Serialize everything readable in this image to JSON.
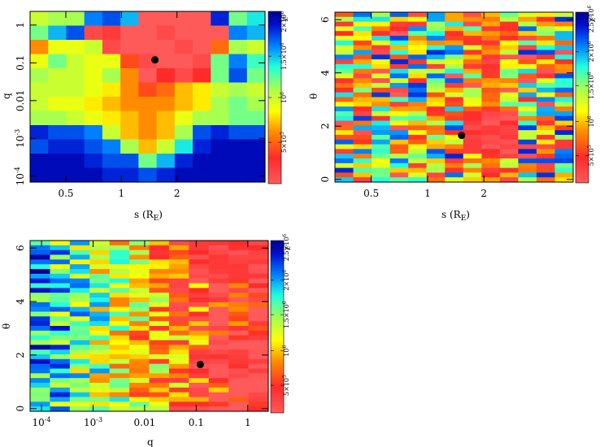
{
  "figure": {
    "description_free": true
  },
  "chart_data": [
    {
      "type": "heatmap",
      "panel": "top-left",
      "xlabel": "s (R_E)",
      "xlabel_main": "s (R",
      "xlabel_sub": "E",
      "xlabel_close": ")",
      "ylabel": "q",
      "x_scale": "log",
      "y_scale": "log",
      "xlim": [
        0.32,
        6.0
      ],
      "ylim": [
        7e-05,
        2.3
      ],
      "x_ticks": [
        {
          "v": 0.5,
          "label": "0.5"
        },
        {
          "v": 1,
          "label": "1"
        },
        {
          "v": 2,
          "label": "2"
        }
      ],
      "y_ticks": [
        {
          "v": 0.0001,
          "label": "10^-4"
        },
        {
          "v": 0.001,
          "label": "10^-3"
        },
        {
          "v": 0.01,
          "label": "0.01"
        },
        {
          "v": 0.1,
          "label": "0.1"
        },
        {
          "v": 1,
          "label": "1"
        }
      ],
      "best_fit_marker": {
        "x": 1.52,
        "y": 0.12
      },
      "colorbar": {
        "label": "χ²",
        "ticks": [
          "5×10^5",
          "10^6",
          "1.5×10^6",
          "2×10^6"
        ],
        "ticks_pos": [
          0.24,
          0.5,
          0.74,
          0.94
        ]
      },
      "grid_cols": 13,
      "grid_rows": 12,
      "values": [
        [
          0.5,
          0.55,
          0.55,
          0.8,
          0.85,
          0.75,
          0.0,
          0.0,
          0.0,
          0.0,
          0.9,
          0.6,
          0.7
        ],
        [
          0.6,
          0.75,
          0.85,
          0.05,
          0.1,
          0.0,
          0.0,
          0.05,
          0.0,
          0.0,
          0.0,
          0.8,
          0.75
        ],
        [
          0.3,
          0.45,
          0.45,
          0.5,
          0.05,
          0.0,
          0.0,
          0.0,
          0.05,
          0.0,
          0.25,
          0.55,
          0.5
        ],
        [
          0.45,
          0.6,
          0.5,
          0.45,
          0.45,
          0.2,
          0.05,
          0.0,
          0.0,
          0.05,
          0.6,
          0.8,
          0.65
        ],
        [
          0.55,
          0.5,
          0.5,
          0.45,
          0.55,
          0.3,
          0.0,
          0.15,
          0.05,
          0.15,
          0.6,
          0.85,
          0.6
        ],
        [
          0.5,
          0.5,
          0.5,
          0.45,
          0.4,
          0.3,
          0.2,
          0.25,
          0.35,
          0.4,
          0.5,
          0.55,
          0.5
        ],
        [
          0.5,
          0.45,
          0.45,
          0.4,
          0.35,
          0.3,
          0.3,
          0.3,
          0.35,
          0.4,
          0.55,
          0.6,
          0.55
        ],
        [
          0.55,
          0.55,
          0.5,
          0.45,
          0.4,
          0.35,
          0.3,
          0.35,
          0.45,
          0.55,
          0.55,
          0.6,
          0.6
        ],
        [
          0.9,
          0.85,
          0.85,
          0.8,
          0.5,
          0.35,
          0.3,
          0.35,
          0.55,
          0.85,
          0.9,
          0.85,
          0.85
        ],
        [
          0.85,
          0.9,
          0.9,
          0.85,
          0.8,
          0.55,
          0.35,
          0.5,
          0.7,
          0.9,
          0.95,
          0.95,
          0.95
        ],
        [
          0.95,
          0.95,
          0.95,
          0.9,
          0.85,
          0.85,
          0.6,
          0.75,
          0.9,
          0.95,
          0.95,
          0.95,
          0.95
        ],
        [
          0.95,
          0.95,
          0.95,
          0.95,
          0.9,
          0.9,
          0.85,
          0.9,
          0.95,
          0.95,
          0.95,
          0.95,
          0.95
        ]
      ]
    },
    {
      "type": "heatmap",
      "panel": "top-right",
      "xlabel": "s (R_E)",
      "xlabel_main": "s (R",
      "xlabel_sub": "E",
      "xlabel_close": ")",
      "ylabel": "θ",
      "x_scale": "log",
      "y_scale": "linear",
      "xlim": [
        0.32,
        6.0
      ],
      "ylim": [
        -0.1,
        6.28
      ],
      "x_ticks": [
        {
          "v": 0.5,
          "label": "0.5"
        },
        {
          "v": 1,
          "label": "1"
        },
        {
          "v": 2,
          "label": "2"
        }
      ],
      "y_ticks": [
        {
          "v": 0,
          "label": "0"
        },
        {
          "v": 2,
          "label": "2"
        },
        {
          "v": 4,
          "label": "4"
        },
        {
          "v": 6,
          "label": "6"
        }
      ],
      "best_fit_marker": {
        "x": 1.52,
        "y": 1.65
      },
      "colorbar": {
        "label": "χ²",
        "ticks": [
          "5×10^5",
          "10^6",
          "1.5×10^6",
          "2×10^6",
          "2.5×10^6"
        ],
        "ticks_pos": [
          0.16,
          0.36,
          0.57,
          0.77,
          0.96
        ]
      },
      "grid_cols": 13,
      "grid_rows": 36,
      "seed": 7,
      "red_band_col": 8
    },
    {
      "type": "heatmap",
      "panel": "bottom-left",
      "xlabel": "q",
      "ylabel": "θ",
      "x_scale": "log",
      "y_scale": "linear",
      "xlim": [
        6e-05,
        2.5
      ],
      "ylim": [
        -0.1,
        6.28
      ],
      "x_ticks": [
        {
          "v": 0.0001,
          "label": "10^-4"
        },
        {
          "v": 0.001,
          "label": "10^-3"
        },
        {
          "v": 0.01,
          "label": "0.01"
        },
        {
          "v": 0.1,
          "label": "0.1"
        },
        {
          "v": 1,
          "label": "1"
        }
      ],
      "y_ticks": [
        {
          "v": 0,
          "label": "0"
        },
        {
          "v": 2,
          "label": "2"
        },
        {
          "v": 4,
          "label": "4"
        },
        {
          "v": 6,
          "label": "6"
        }
      ],
      "best_fit_marker": {
        "x": 0.12,
        "y": 1.65
      },
      "colorbar": {
        "label": "χ²",
        "ticks": [
          "5×10^5",
          "10^6",
          "1.5×10^6",
          "2×10^6",
          "2.5×10^6"
        ],
        "ticks_pos": [
          0.16,
          0.36,
          0.57,
          0.77,
          0.96
        ]
      },
      "grid_cols": 12,
      "grid_rows": 36,
      "seed": 19
    }
  ]
}
